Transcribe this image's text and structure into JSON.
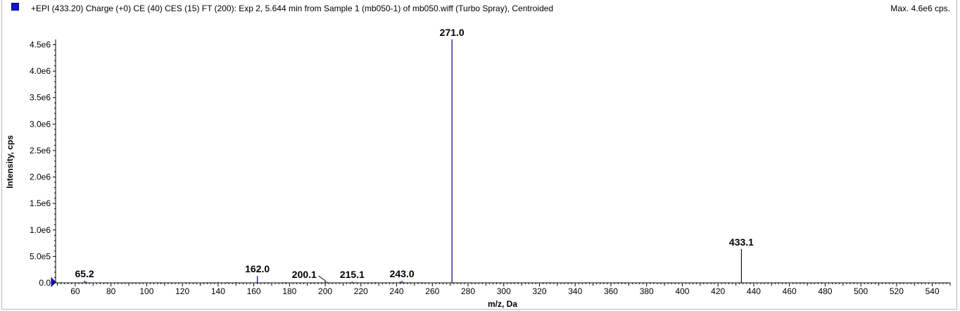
{
  "header": {
    "trace_title": "+EPI (433.20) Charge (+0) CE (40) CES (15) FT (200): Exp 2, 5.644 min from Sample 1 (mb050-1) of mb050.wiff (Turbo Spray), Centroided",
    "max_label": "Max. 4.6e6 cps.",
    "legend_color": "#1414c8"
  },
  "chart_data": {
    "type": "bar",
    "xlabel": "m/z, Da",
    "ylabel": "Intensity, cps",
    "xlim": [
      49,
      550
    ],
    "ylim": [
      0,
      4600000
    ],
    "x_ticks": [
      60,
      80,
      100,
      120,
      140,
      160,
      180,
      200,
      220,
      240,
      260,
      280,
      300,
      320,
      340,
      360,
      380,
      400,
      420,
      440,
      460,
      480,
      500,
      520,
      540
    ],
    "x_tick_labels": [
      "60",
      "80",
      "100",
      "120",
      "140",
      "160",
      "180",
      "200",
      "220",
      "240",
      "260",
      "280",
      "300",
      "320",
      "340",
      "360",
      "380",
      "400",
      "420",
      "440",
      "460",
      "480",
      "500",
      "520",
      "540"
    ],
    "y_ticks": [
      0,
      500000,
      1000000,
      1500000,
      2000000,
      2500000,
      3000000,
      3500000,
      4000000,
      4500000
    ],
    "y_tick_labels": [
      "0.0",
      "5.0e5",
      "1.0e6",
      "1.5e6",
      "2.0e6",
      "2.5e6",
      "3.0e6",
      "3.5e6",
      "4.0e6",
      "4.5e6"
    ],
    "grid": false,
    "series_color": "#000080",
    "peaks": [
      {
        "mz": 65.2,
        "intensity": 40000,
        "label": "65.2"
      },
      {
        "mz": 66.1,
        "intensity": 25000,
        "label": ""
      },
      {
        "mz": 140.0,
        "intensity": 15000,
        "label": ""
      },
      {
        "mz": 145.0,
        "intensity": 12000,
        "label": ""
      },
      {
        "mz": 150.0,
        "intensity": 15000,
        "label": ""
      },
      {
        "mz": 162.0,
        "intensity": 130000,
        "label": "162.0"
      },
      {
        "mz": 178.0,
        "intensity": 12000,
        "label": ""
      },
      {
        "mz": 200.1,
        "intensity": 40000,
        "label": "200.1"
      },
      {
        "mz": 201.0,
        "intensity": 20000,
        "label": ""
      },
      {
        "mz": 215.1,
        "intensity": 25000,
        "label": "215.1"
      },
      {
        "mz": 228.0,
        "intensity": 12000,
        "label": ""
      },
      {
        "mz": 242.0,
        "intensity": 25000,
        "label": ""
      },
      {
        "mz": 243.0,
        "intensity": 40000,
        "label": "243.0"
      },
      {
        "mz": 244.0,
        "intensity": 15000,
        "label": ""
      },
      {
        "mz": 271.0,
        "intensity": 4600000,
        "label": "271.0"
      },
      {
        "mz": 433.1,
        "intensity": 640000,
        "label": "433.1"
      }
    ]
  }
}
